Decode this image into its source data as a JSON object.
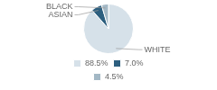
{
  "chart_data": {
    "type": "pie",
    "categories": [
      "WHITE",
      "ASIAN",
      "BLACK"
    ],
    "values": [
      88.5,
      7.0,
      4.5
    ],
    "value_labels": [
      "88.5%",
      "7.0%",
      "4.5%"
    ],
    "colors": [
      "#d6e1e9",
      "#2d5f7f",
      "#a3b8c5"
    ],
    "legend": "bottom"
  }
}
